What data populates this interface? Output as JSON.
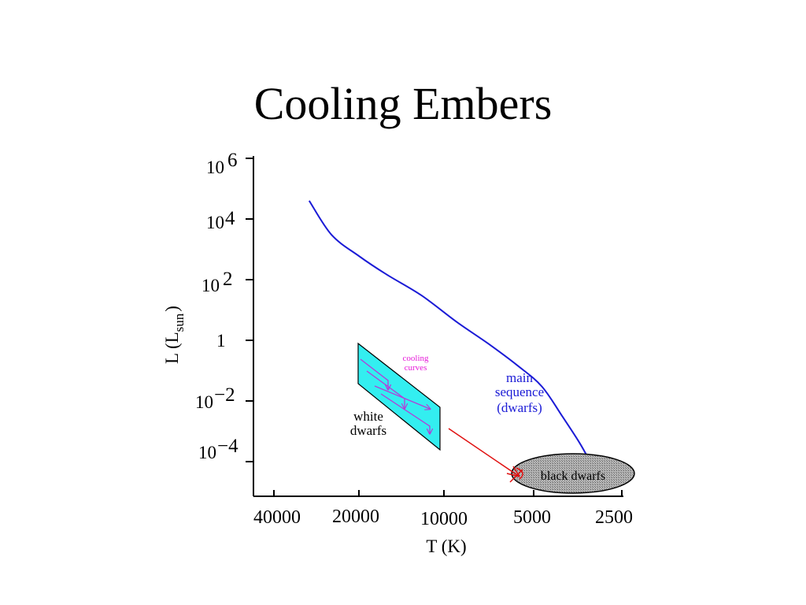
{
  "slide": {
    "title": "Cooling Embers"
  },
  "chart_data": {
    "type": "line",
    "title": "",
    "xlabel": "T (K)",
    "ylabel": {
      "main": "L  (L",
      "sub": "sun",
      "close": ")"
    },
    "x_scale": "log, reversed",
    "x_ticks": [
      {
        "value": 40000,
        "label": "40000"
      },
      {
        "value": 20000,
        "label": "20000"
      },
      {
        "value": 10000,
        "label": "10000"
      },
      {
        "value": 5000,
        "label": "5000"
      },
      {
        "value": 2500,
        "label": "2500"
      }
    ],
    "y_scale": "log",
    "y_ticks": [
      {
        "value": 1000000,
        "base": "10",
        "exp": "6"
      },
      {
        "value": 10000,
        "base": "10",
        "exp": "4"
      },
      {
        "value": 100,
        "base": "10",
        "exp": "2"
      },
      {
        "value": 1,
        "base": "1",
        "exp": ""
      },
      {
        "value": 0.01,
        "base": "10",
        "exp": "−2"
      },
      {
        "value": 0.0001,
        "base": "10",
        "exp": "−4"
      }
    ],
    "series": [
      {
        "name": "main sequence (dwarfs)",
        "color": "#1b1bd6",
        "x": [
          30000,
          25000,
          20000,
          16000,
          12000,
          9000,
          7000,
          5500,
          4500,
          3800,
          3300,
          3000
        ],
        "y": [
          40000,
          3000,
          600,
          150,
          30,
          4,
          0.8,
          0.15,
          0.03,
          0.003,
          0.0004,
          8e-05
        ]
      }
    ],
    "annotations": {
      "main_sequence": [
        "main",
        "sequence",
        "(dwarfs)"
      ],
      "white_dwarfs": [
        "white",
        "dwarfs"
      ],
      "cooling_curves": [
        "cooling",
        "curves"
      ],
      "black_dwarfs": "black dwarfs"
    },
    "grid": false,
    "legend": "none"
  },
  "colors": {
    "main_sequence": "#1b1bd6",
    "white_dwarf_band": "#33eef0",
    "cooling_arrows": "#b43cd8",
    "cooling_text": "#e61ad9",
    "red_arrow": "#e01010",
    "black_dwarf_fill": "#9a9a9a"
  }
}
